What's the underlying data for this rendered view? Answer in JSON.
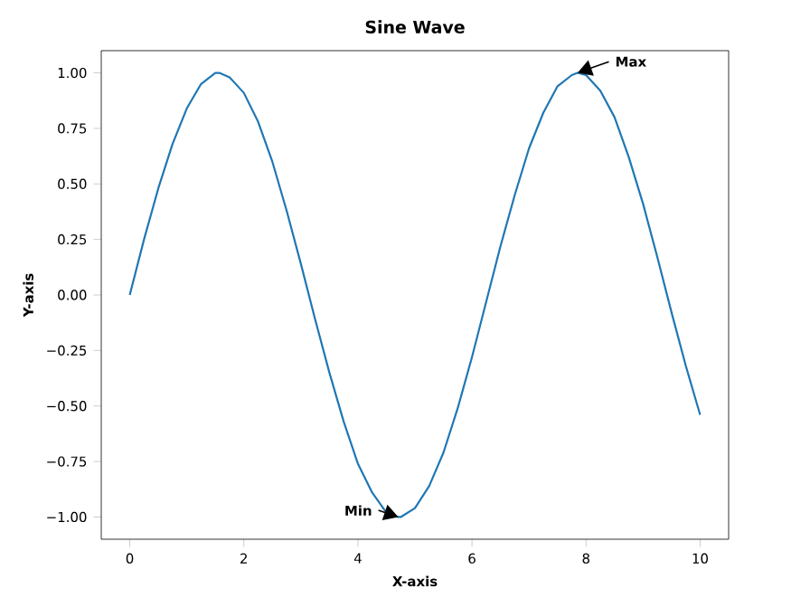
{
  "chart_data": {
    "type": "line",
    "title": "Sine Wave",
    "xlabel": "X-axis",
    "ylabel": "Y-axis",
    "x": [
      0,
      0.25,
      0.5,
      0.75,
      1,
      1.25,
      1.5,
      1.57,
      1.75,
      2,
      2.25,
      2.5,
      2.75,
      3,
      3.25,
      3.5,
      3.75,
      4,
      4.25,
      4.5,
      4.71,
      4.75,
      5,
      5.25,
      5.5,
      5.75,
      6,
      6.25,
      6.5,
      6.75,
      7,
      7.25,
      7.5,
      7.75,
      7.85,
      8,
      8.25,
      8.5,
      8.75,
      9,
      9.25,
      9.5,
      9.75,
      10
    ],
    "series": [
      {
        "color": "#1f77b4",
        "values": [
          0,
          0.25,
          0.48,
          0.68,
          0.84,
          0.95,
          1.0,
          1.0,
          0.98,
          0.91,
          0.78,
          0.6,
          0.38,
          0.14,
          -0.11,
          -0.35,
          -0.57,
          -0.76,
          -0.89,
          -0.98,
          -1.0,
          -1.0,
          -0.96,
          -0.86,
          -0.71,
          -0.51,
          -0.28,
          -0.03,
          0.22,
          0.45,
          0.66,
          0.82,
          0.94,
          0.99,
          1.0,
          0.99,
          0.92,
          0.8,
          0.62,
          0.41,
          0.17,
          -0.08,
          -0.32,
          -0.54
        ]
      }
    ],
    "xlim": [
      -0.5,
      10.5
    ],
    "ylim": [
      -1.1,
      1.1
    ],
    "xticks": [
      0,
      2,
      4,
      6,
      8,
      10
    ],
    "yticks": [
      {
        "value": -1,
        "label": "−1.00"
      },
      {
        "value": -0.75,
        "label": "−0.75"
      },
      {
        "value": -0.5,
        "label": "−0.50"
      },
      {
        "value": -0.25,
        "label": "−0.25"
      },
      {
        "value": 0,
        "label": "0.00"
      },
      {
        "value": 0.25,
        "label": "0.25"
      },
      {
        "value": 0.5,
        "label": "0.50"
      },
      {
        "value": 0.75,
        "label": "0.75"
      },
      {
        "value": 1,
        "label": "1.00"
      }
    ],
    "annotations": [
      {
        "text": "Max",
        "x": 7.85,
        "y": 1
      },
      {
        "text": "Min",
        "x": 4.71,
        "y": -1
      }
    ],
    "marker": "none"
  }
}
